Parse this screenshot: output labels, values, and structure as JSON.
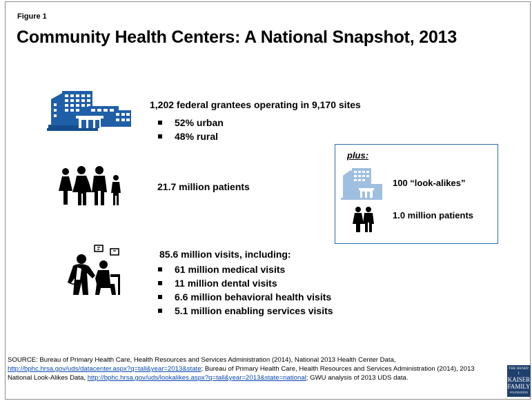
{
  "figure_label": "Figure 1",
  "title": "Community Health Centers: A National Snapshot, 2013",
  "grantees": {
    "headline": "1,202 federal grantees operating in 9,170 sites",
    "bullets": [
      "52% urban",
      "48% rural"
    ]
  },
  "patients": {
    "headline": "21.7 million patients"
  },
  "visits": {
    "headline": "85.6 million visits, including:",
    "bullets": [
      "61 million medical visits",
      "11 million dental visits",
      "6.6 million behavioral health visits",
      "5.1 million enabling services visits"
    ]
  },
  "plus_box": {
    "label": "plus:",
    "lookalikes": "100 “look-alikes”",
    "patients": "1.0 million patients"
  },
  "source": {
    "prefix": "SOURCE: Bureau of Primary Health Care, Health Resources and Services Administration (2014), National 2013 Health Center Data, ",
    "link1": "http://bphc.hrsa.gov/uds/datacenter.aspx?q=tall&year=2013&state",
    "middle": "; Bureau of Primary Health Care, Health Resources and Services Administration (2014), 2013 National Look-Alikes Data, ",
    "link2": "http://bphc.hrsa.gov/uds/lookalikes.aspx?q=tall&year=2013&state=national",
    "suffix": "; GWU analysis of 2013 UDS data."
  },
  "logo": {
    "line1": "THE HENRY J.",
    "line2": "KAISER",
    "line3": "FAMILY",
    "line4": "FOUNDATION"
  },
  "colors": {
    "building_blue": "#1f5fa8",
    "box_border": "#2e6aa8",
    "link": "#0645ad",
    "logo_bg": "#1f3f6e"
  },
  "icons": [
    "building-icon",
    "family-icon",
    "doctor-patient-icon",
    "small-building-icon",
    "couple-icon"
  ]
}
